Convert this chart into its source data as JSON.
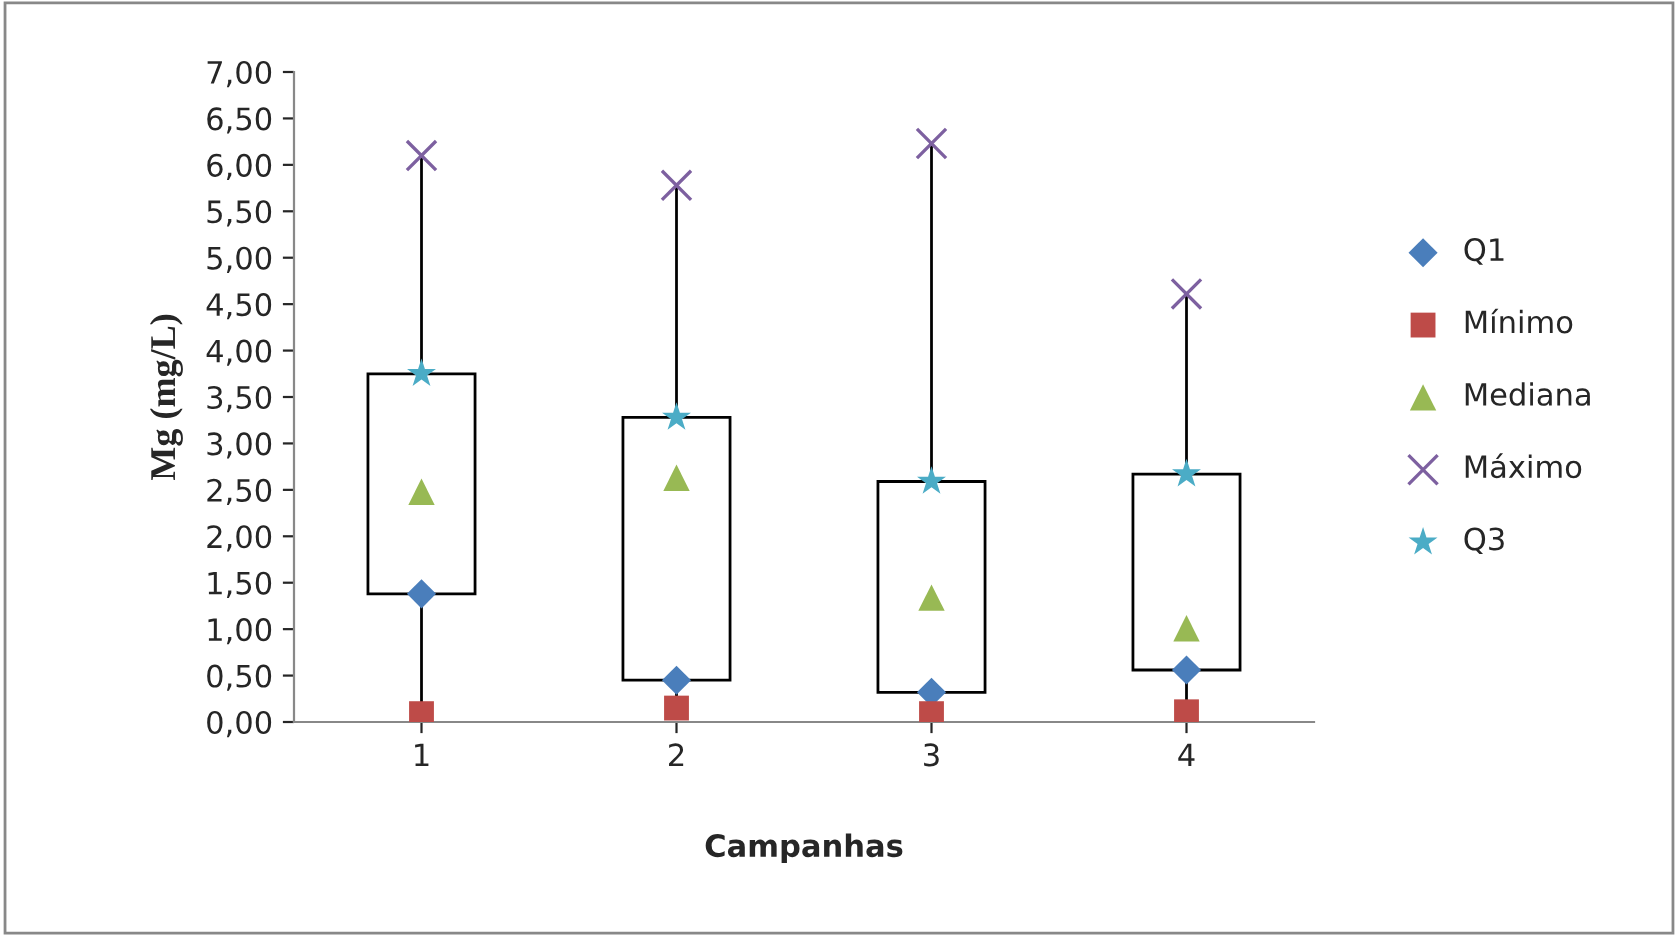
{
  "chart_data": {
    "type": "box",
    "xlabel": "Campanhas",
    "ylabel": "Mg (mg/L)",
    "categories": [
      "1",
      "2",
      "3",
      "4"
    ],
    "boxes": [
      {
        "low": 0.09,
        "q1": 1.38,
        "q3": 3.75,
        "high": 6.1
      },
      {
        "low": 0.15,
        "q1": 0.45,
        "q3": 3.28,
        "high": 5.78
      },
      {
        "low": 0.09,
        "q1": 0.32,
        "q3": 2.59,
        "high": 6.23
      },
      {
        "low": 0.11,
        "q1": 0.56,
        "q3": 2.67,
        "high": 4.61
      }
    ],
    "series": [
      {
        "name": "Q1",
        "type": "scatter",
        "marker": "diamond",
        "color": "#4a7ebb",
        "values": [
          1.38,
          0.45,
          0.32,
          0.56
        ]
      },
      {
        "name": "Mínimo",
        "type": "scatter",
        "marker": "square",
        "color": "#be4b48",
        "values": [
          0.09,
          0.15,
          0.09,
          0.11
        ]
      },
      {
        "name": "Mediana",
        "type": "scatter",
        "marker": "triangle",
        "color": "#98b954",
        "values": [
          2.48,
          2.63,
          1.34,
          1.01
        ]
      },
      {
        "name": "Máximo",
        "type": "scatter",
        "marker": "cross",
        "color": "#7d60a0",
        "values": [
          6.1,
          5.78,
          6.23,
          4.61
        ]
      },
      {
        "name": "Q3",
        "type": "scatter",
        "marker": "star",
        "color": "#4bacc6",
        "values": [
          3.75,
          3.28,
          2.59,
          2.67
        ]
      }
    ],
    "ylim": [
      0,
      7
    ],
    "yticks": [
      {
        "value": 0,
        "label": "0,00"
      },
      {
        "value": 0.5,
        "label": "0,50"
      },
      {
        "value": 1,
        "label": "1,00"
      },
      {
        "value": 1.5,
        "label": "1,50"
      },
      {
        "value": 2,
        "label": "2,00"
      },
      {
        "value": 2.5,
        "label": "2,50"
      },
      {
        "value": 3,
        "label": "3,00"
      },
      {
        "value": 3.5,
        "label": "3,50"
      },
      {
        "value": 4,
        "label": "4,00"
      },
      {
        "value": 4.5,
        "label": "4,50"
      },
      {
        "value": 5,
        "label": "5,00"
      },
      {
        "value": 5.5,
        "label": "5,50"
      },
      {
        "value": 6,
        "label": "6,00"
      },
      {
        "value": 6.5,
        "label": "6,50"
      },
      {
        "value": 7,
        "label": "7,00"
      }
    ],
    "grid": false,
    "legend": "right"
  }
}
